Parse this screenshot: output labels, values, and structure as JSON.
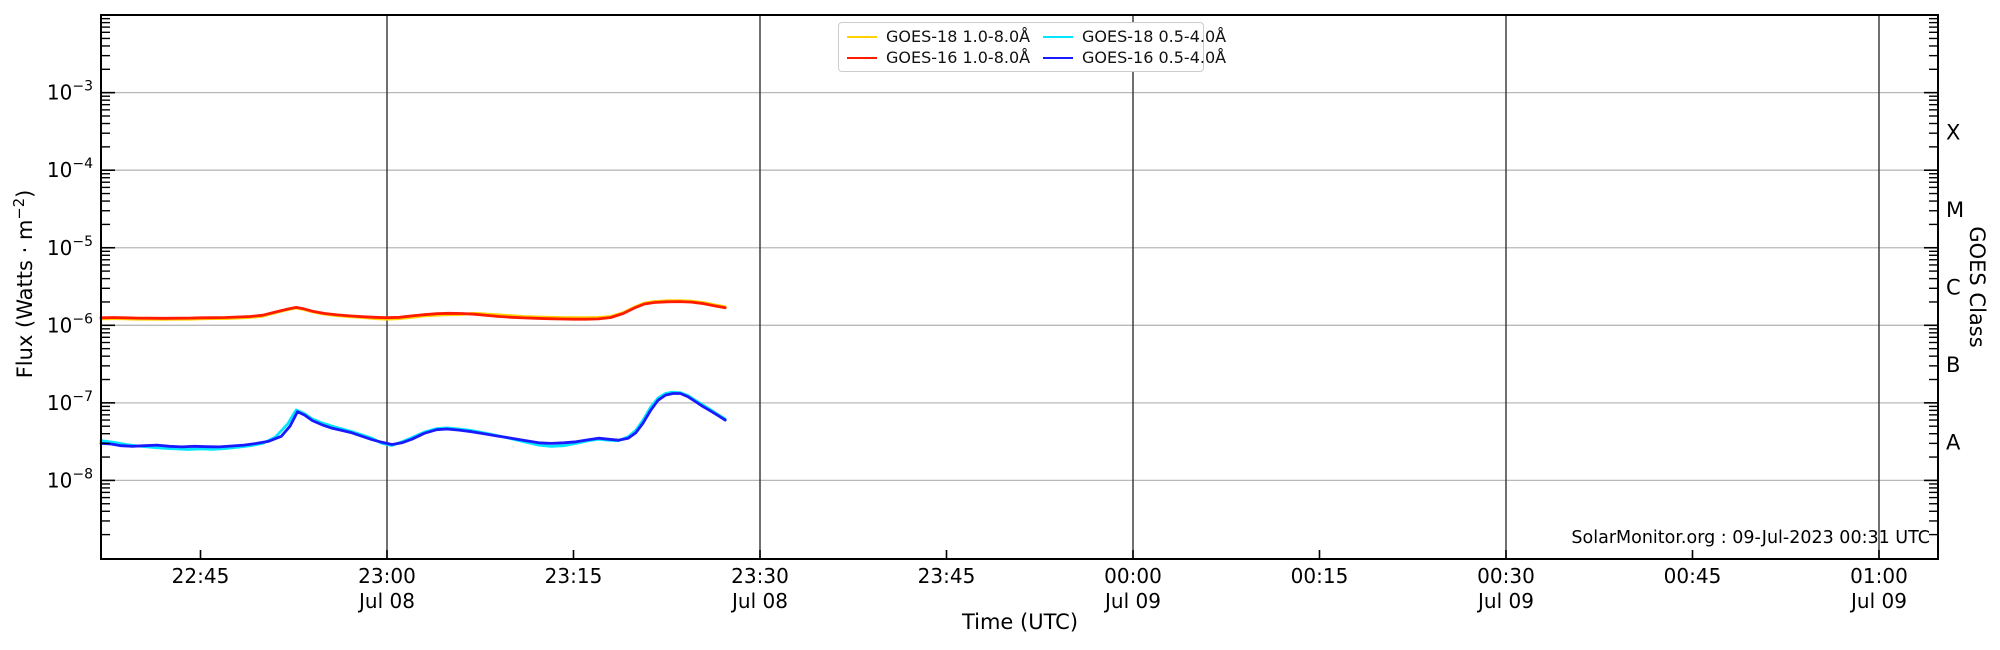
{
  "figure": {
    "background": "#ffffff",
    "source_text": "SolarMonitor.org : 09-Jul-2023 00:31 UTC"
  },
  "legend": {
    "entries": [
      {
        "id": "goes-18-long",
        "label": "GOES-18 1.0-8.0Å",
        "color": "#ffd300"
      },
      {
        "id": "goes-16-long",
        "label": "GOES-16 1.0-8.0Å",
        "color": "#ff1a00"
      },
      {
        "id": "goes-18-short",
        "label": "GOES-18 0.5-4.0Å",
        "color": "#00e8ff"
      },
      {
        "id": "goes-16-short",
        "label": "GOES-16 0.5-4.0Å",
        "color": "#1a1aff"
      }
    ]
  },
  "chart_data": {
    "type": "line",
    "title": "",
    "xlabel": "Time (UTC)",
    "ylabel": "Flux (Watts · m⁻²)",
    "ylabel_parts": {
      "prefix": "Flux (Watts · m",
      "sup": "−2",
      "suffix": ")"
    },
    "y2label": "GOES Class",
    "style": {
      "h_grid_color": "#b8b8b8",
      "v_grid_color": "#333333",
      "spine_color": "#000000",
      "text_color": "#000000"
    },
    "x_axis": {
      "start_time": "22:37",
      "end_time": "01:05",
      "range_minutes_after_22UTC": [
        37.0,
        184.8
      ],
      "ticks": [
        {
          "minutes": 45,
          "label": "22:45"
        },
        {
          "minutes": 60,
          "label": "23:00",
          "date": "Jul 08",
          "gridline": true
        },
        {
          "minutes": 75,
          "label": "23:15"
        },
        {
          "minutes": 90,
          "label": "23:30",
          "date": "Jul 08",
          "gridline": true
        },
        {
          "minutes": 105,
          "label": "23:45"
        },
        {
          "minutes": 120,
          "label": "00:00",
          "date": "Jul 09",
          "gridline": true
        },
        {
          "minutes": 135,
          "label": "00:15"
        },
        {
          "minutes": 150,
          "label": "00:30",
          "date": "Jul 09",
          "gridline": true
        },
        {
          "minutes": 165,
          "label": "00:45"
        },
        {
          "minutes": 180,
          "label": "01:00",
          "date": "Jul 09",
          "gridline": true
        }
      ]
    },
    "y_axis": {
      "scale": "log",
      "min": 1e-09,
      "max": 0.01,
      "labeled_decades": [
        -3,
        -4,
        -5,
        -6,
        -7,
        -8
      ],
      "grid": true
    },
    "goes_classes": [
      {
        "label": "X",
        "between_exponents": [
          -4,
          -3
        ]
      },
      {
        "label": "M",
        "between_exponents": [
          -5,
          -4
        ]
      },
      {
        "label": "C",
        "between_exponents": [
          -6,
          -5
        ]
      },
      {
        "label": "B",
        "between_exponents": [
          -7,
          -6
        ]
      },
      {
        "label": "A",
        "between_exponents": [
          -8,
          -7
        ]
      }
    ],
    "series": [
      {
        "id": "goes-18-long",
        "name": "GOES-18 1.0-8.0Å",
        "color": "#ffd300",
        "points": [
          [
            37,
            1.21e-06
          ],
          [
            38,
            1.22e-06
          ],
          [
            39,
            1.21e-06
          ],
          [
            40,
            1.2e-06
          ],
          [
            41,
            1.2e-06
          ],
          [
            42,
            1.19e-06
          ],
          [
            43,
            1.2e-06
          ],
          [
            44,
            1.2e-06
          ],
          [
            45,
            1.21e-06
          ],
          [
            46,
            1.22e-06
          ],
          [
            47,
            1.22e-06
          ],
          [
            48,
            1.24e-06
          ],
          [
            49,
            1.26e-06
          ],
          [
            50,
            1.31e-06
          ],
          [
            51,
            1.45e-06
          ],
          [
            52,
            1.59e-06
          ],
          [
            52.7,
            1.67e-06
          ],
          [
            53.3,
            1.6e-06
          ],
          [
            54,
            1.49e-06
          ],
          [
            55,
            1.39e-06
          ],
          [
            56,
            1.33e-06
          ],
          [
            57,
            1.29e-06
          ],
          [
            58,
            1.26e-06
          ],
          [
            59,
            1.22e-06
          ],
          [
            60,
            1.2e-06
          ],
          [
            61,
            1.22e-06
          ],
          [
            62,
            1.27e-06
          ],
          [
            63,
            1.32e-06
          ],
          [
            64,
            1.35e-06
          ],
          [
            65,
            1.37e-06
          ],
          [
            66,
            1.38e-06
          ],
          [
            67,
            1.43e-06
          ],
          [
            68,
            1.4e-06
          ],
          [
            69,
            1.36e-06
          ],
          [
            70,
            1.33e-06
          ],
          [
            71,
            1.3e-06
          ],
          [
            72,
            1.285e-06
          ],
          [
            73,
            1.27e-06
          ],
          [
            74,
            1.26e-06
          ],
          [
            75,
            1.254e-06
          ],
          [
            76,
            1.254e-06
          ],
          [
            77,
            1.264e-06
          ],
          [
            78,
            1.3e-06
          ],
          [
            79,
            1.46e-06
          ],
          [
            80,
            1.75e-06
          ],
          [
            80.7,
            1.94e-06
          ],
          [
            81.5,
            2.03e-06
          ],
          [
            82.5,
            2.07e-06
          ],
          [
            83.5,
            2.08e-06
          ],
          [
            84.5,
            2.05e-06
          ],
          [
            85.5,
            1.96e-06
          ],
          [
            86.3,
            1.84e-06
          ],
          [
            87.2,
            1.73e-06
          ]
        ]
      },
      {
        "id": "goes-16-long",
        "name": "GOES-16 1.0-8.0Å",
        "color": "#ff1a00",
        "points": [
          [
            37,
            1.25e-06
          ],
          [
            38,
            1.26e-06
          ],
          [
            39,
            1.25e-06
          ],
          [
            40,
            1.24e-06
          ],
          [
            41,
            1.235e-06
          ],
          [
            42,
            1.23e-06
          ],
          [
            43,
            1.235e-06
          ],
          [
            44,
            1.24e-06
          ],
          [
            45,
            1.25e-06
          ],
          [
            46,
            1.255e-06
          ],
          [
            47,
            1.26e-06
          ],
          [
            48,
            1.28e-06
          ],
          [
            49,
            1.3e-06
          ],
          [
            50,
            1.35e-06
          ],
          [
            51,
            1.48e-06
          ],
          [
            52,
            1.62e-06
          ],
          [
            52.7,
            1.7e-06
          ],
          [
            53.3,
            1.63e-06
          ],
          [
            54,
            1.52e-06
          ],
          [
            55,
            1.42e-06
          ],
          [
            56,
            1.36e-06
          ],
          [
            57,
            1.32e-06
          ],
          [
            58,
            1.29e-06
          ],
          [
            59,
            1.27e-06
          ],
          [
            60,
            1.255e-06
          ],
          [
            61,
            1.27e-06
          ],
          [
            62,
            1.32e-06
          ],
          [
            63,
            1.37e-06
          ],
          [
            64,
            1.41e-06
          ],
          [
            65,
            1.43e-06
          ],
          [
            66,
            1.42e-06
          ],
          [
            67,
            1.39e-06
          ],
          [
            68,
            1.34e-06
          ],
          [
            69,
            1.3e-06
          ],
          [
            70,
            1.27e-06
          ],
          [
            71,
            1.245e-06
          ],
          [
            72,
            1.23e-06
          ],
          [
            73,
            1.215e-06
          ],
          [
            74,
            1.205e-06
          ],
          [
            75,
            1.2e-06
          ],
          [
            76,
            1.2e-06
          ],
          [
            77,
            1.21e-06
          ],
          [
            78,
            1.26e-06
          ],
          [
            79,
            1.42e-06
          ],
          [
            80,
            1.7e-06
          ],
          [
            80.7,
            1.88e-06
          ],
          [
            81.5,
            1.97e-06
          ],
          [
            82.5,
            2.01e-06
          ],
          [
            83.5,
            2.02e-06
          ],
          [
            84.5,
            1.99e-06
          ],
          [
            85.5,
            1.9e-06
          ],
          [
            86.3,
            1.79e-06
          ],
          [
            87.2,
            1.68e-06
          ]
        ]
      },
      {
        "id": "goes-18-short",
        "name": "GOES-18 0.5-4.0Å",
        "color": "#00e8ff",
        "points": [
          [
            37,
            3.25e-08
          ],
          [
            38,
            3.1e-08
          ],
          [
            39,
            2.9e-08
          ],
          [
            40,
            2.78e-08
          ],
          [
            41,
            2.68e-08
          ],
          [
            42,
            2.6e-08
          ],
          [
            43,
            2.55e-08
          ],
          [
            44,
            2.5e-08
          ],
          [
            45,
            2.55e-08
          ],
          [
            46,
            2.52e-08
          ],
          [
            47,
            2.58e-08
          ],
          [
            48,
            2.68e-08
          ],
          [
            49,
            2.8e-08
          ],
          [
            50,
            3e-08
          ],
          [
            51,
            3.6e-08
          ],
          [
            52,
            5.3e-08
          ],
          [
            52.7,
            8.1e-08
          ],
          [
            53.4,
            7.2e-08
          ],
          [
            54,
            6.2e-08
          ],
          [
            54.8,
            5.5e-08
          ],
          [
            55.6,
            5e-08
          ],
          [
            56.4,
            4.6e-08
          ],
          [
            57.2,
            4.25e-08
          ],
          [
            58,
            3.85e-08
          ],
          [
            58.8,
            3.5e-08
          ],
          [
            59.6,
            3e-08
          ],
          [
            60.4,
            2.82e-08
          ],
          [
            61.2,
            3.15e-08
          ],
          [
            62,
            3.55e-08
          ],
          [
            63,
            4.2e-08
          ],
          [
            64,
            4.65e-08
          ],
          [
            64.8,
            4.75e-08
          ],
          [
            65.8,
            4.6e-08
          ],
          [
            66.8,
            4.4e-08
          ],
          [
            67.8,
            4.1e-08
          ],
          [
            68.8,
            3.8e-08
          ],
          [
            70,
            3.45e-08
          ],
          [
            71.2,
            3.1e-08
          ],
          [
            72.2,
            2.85e-08
          ],
          [
            73.2,
            2.75e-08
          ],
          [
            74.2,
            2.8e-08
          ],
          [
            75.2,
            3e-08
          ],
          [
            76.2,
            3.25e-08
          ],
          [
            77,
            3.4e-08
          ],
          [
            77.8,
            3.3e-08
          ],
          [
            78.6,
            3.25e-08
          ],
          [
            79.4,
            3.65e-08
          ],
          [
            80,
            4.4e-08
          ],
          [
            80.6,
            6e-08
          ],
          [
            81.2,
            8.8e-08
          ],
          [
            81.8,
            1.15e-07
          ],
          [
            82.4,
            1.32e-07
          ],
          [
            82.9,
            1.37e-07
          ],
          [
            83.6,
            1.35e-07
          ],
          [
            84.2,
            1.24e-07
          ],
          [
            84.8,
            1.08e-07
          ],
          [
            85.4,
            9.4e-08
          ],
          [
            86,
            8.2e-08
          ],
          [
            86.6,
            7.1e-08
          ],
          [
            87.2,
            6.2e-08
          ]
        ]
      },
      {
        "id": "goes-16-short",
        "name": "GOES-16 0.5-4.0Å",
        "color": "#1a1aff",
        "points": [
          [
            37,
            3e-08
          ],
          [
            37.8,
            2.95e-08
          ],
          [
            38.6,
            2.8e-08
          ],
          [
            39.5,
            2.75e-08
          ],
          [
            40.5,
            2.8e-08
          ],
          [
            41.5,
            2.85e-08
          ],
          [
            42.5,
            2.75e-08
          ],
          [
            43.5,
            2.7e-08
          ],
          [
            44.5,
            2.75e-08
          ],
          [
            45.5,
            2.72e-08
          ],
          [
            46.5,
            2.7e-08
          ],
          [
            47.5,
            2.78e-08
          ],
          [
            48.5,
            2.85e-08
          ],
          [
            49.5,
            3e-08
          ],
          [
            50.5,
            3.2e-08
          ],
          [
            51.5,
            3.7e-08
          ],
          [
            52.2,
            5e-08
          ],
          [
            52.8,
            7.7e-08
          ],
          [
            53.4,
            6.9e-08
          ],
          [
            54,
            5.9e-08
          ],
          [
            54.8,
            5.2e-08
          ],
          [
            55.6,
            4.7e-08
          ],
          [
            56.4,
            4.4e-08
          ],
          [
            57.2,
            4.1e-08
          ],
          [
            58,
            3.7e-08
          ],
          [
            58.8,
            3.35e-08
          ],
          [
            59.6,
            3.1e-08
          ],
          [
            60.4,
            2.9e-08
          ],
          [
            61.2,
            3.05e-08
          ],
          [
            62,
            3.4e-08
          ],
          [
            63,
            4.05e-08
          ],
          [
            64,
            4.5e-08
          ],
          [
            64.8,
            4.6e-08
          ],
          [
            65.8,
            4.45e-08
          ],
          [
            66.8,
            4.25e-08
          ],
          [
            67.8,
            4e-08
          ],
          [
            68.8,
            3.75e-08
          ],
          [
            70,
            3.5e-08
          ],
          [
            71.2,
            3.25e-08
          ],
          [
            72.2,
            3.05e-08
          ],
          [
            73.2,
            3e-08
          ],
          [
            74.2,
            3.05e-08
          ],
          [
            75.2,
            3.15e-08
          ],
          [
            76.2,
            3.35e-08
          ],
          [
            77,
            3.5e-08
          ],
          [
            77.8,
            3.4e-08
          ],
          [
            78.6,
            3.3e-08
          ],
          [
            79.4,
            3.5e-08
          ],
          [
            80,
            4.1e-08
          ],
          [
            80.6,
            5.5e-08
          ],
          [
            81.2,
            8e-08
          ],
          [
            81.8,
            1.08e-07
          ],
          [
            82.4,
            1.26e-07
          ],
          [
            83,
            1.32e-07
          ],
          [
            83.6,
            1.32e-07
          ],
          [
            84.2,
            1.2e-07
          ],
          [
            84.8,
            1.04e-07
          ],
          [
            85.4,
            9e-08
          ],
          [
            86,
            7.9e-08
          ],
          [
            86.6,
            6.9e-08
          ],
          [
            87.2,
            6e-08
          ]
        ]
      }
    ]
  }
}
